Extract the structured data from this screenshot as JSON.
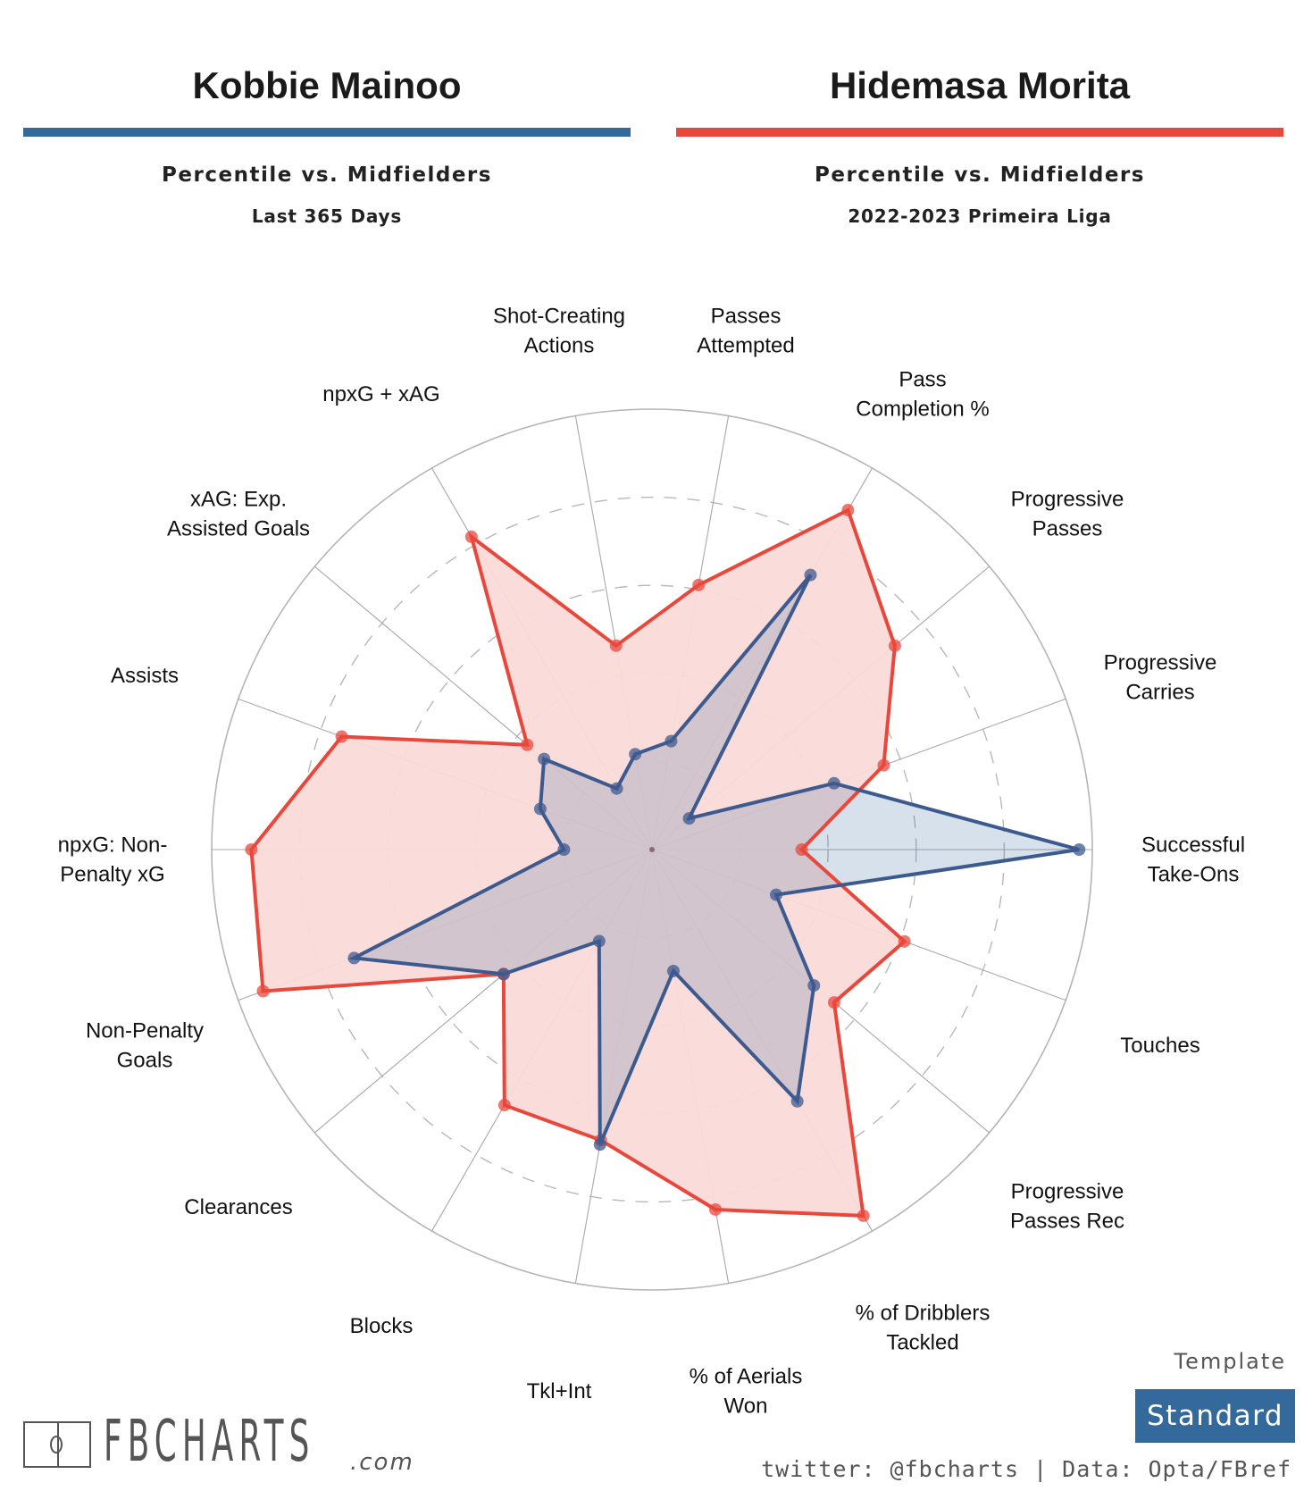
{
  "players": [
    {
      "name": "Kobbie Mainoo",
      "color": "#34699c",
      "subtitle": "Percentile vs. Midfielders",
      "period": "Last 365 Days"
    },
    {
      "name": "Hidemasa Morita",
      "color": "#e8483c",
      "subtitle": "Percentile vs. Midfielders",
      "period": "2022-2023 Primeira Liga"
    }
  ],
  "branding": {
    "logo_text": "FBCHARTS",
    "logo_suffix": ".com",
    "logo_icon": "football-pitch-icon",
    "template_label": "Template",
    "template_value": "Standard",
    "credit": "twitter: @fbcharts | Data: Opta/FBref"
  },
  "chart_data": {
    "type": "radar",
    "title": "Kobbie Mainoo vs. Hidemasa Morita",
    "value_range": [
      0,
      100
    ],
    "rings": [
      20,
      40,
      60,
      80,
      100
    ],
    "grid": true,
    "axes": [
      {
        "label": [
          "Successful",
          "Take-Ons"
        ],
        "angle_deg": 0
      },
      {
        "label": [
          "Progressive",
          "Carries"
        ],
        "angle_deg": 20
      },
      {
        "label": [
          "Progressive",
          "Passes"
        ],
        "angle_deg": 40
      },
      {
        "label": [
          "Pass",
          "Completion %"
        ],
        "angle_deg": 60
      },
      {
        "label": [
          "Passes",
          "Attempted"
        ],
        "angle_deg": 80
      },
      {
        "label": [
          "Shot-Creating",
          "Actions"
        ],
        "angle_deg": 100
      },
      {
        "label": [
          "npxG + xAG"
        ],
        "angle_deg": 120
      },
      {
        "label": [
          "xAG: Exp.",
          "Assisted Goals"
        ],
        "angle_deg": 140
      },
      {
        "label": [
          "Assists"
        ],
        "angle_deg": 160
      },
      {
        "label": [
          "npxG: Non-",
          "Penalty xG"
        ],
        "angle_deg": 180
      },
      {
        "label": [
          "Non-Penalty",
          "Goals"
        ],
        "angle_deg": 200
      },
      {
        "label": [
          "Clearances"
        ],
        "angle_deg": 220
      },
      {
        "label": [
          "Blocks"
        ],
        "angle_deg": 240
      },
      {
        "label": [
          "Tkl+Int"
        ],
        "angle_deg": 260
      },
      {
        "label": [
          "% of Aerials",
          "Won"
        ],
        "angle_deg": 280
      },
      {
        "label": [
          "% of Dribblers",
          "Tackled"
        ],
        "angle_deg": 300
      },
      {
        "label": [
          "Progressive",
          "Passes Rec"
        ],
        "angle_deg": 320
      },
      {
        "label": [
          "Touches"
        ],
        "angle_deg": 340
      }
    ],
    "series": [
      {
        "name": "Hidemasa Morita",
        "color": "#e8483c",
        "fill": "#fadad8",
        "values": [
          34,
          56,
          72,
          89,
          61,
          47,
          82,
          37,
          75,
          91,
          94,
          44,
          67,
          67,
          83,
          96,
          54,
          61
        ]
      },
      {
        "name": "Kobbie Mainoo",
        "color": "#34699c",
        "fill": "#34699c",
        "values": [
          97,
          44,
          11,
          72,
          25,
          22,
          16,
          32,
          27,
          20,
          72,
          44,
          24,
          68,
          28,
          66,
          48,
          30
        ]
      }
    ],
    "legend": "top (player headers)"
  }
}
